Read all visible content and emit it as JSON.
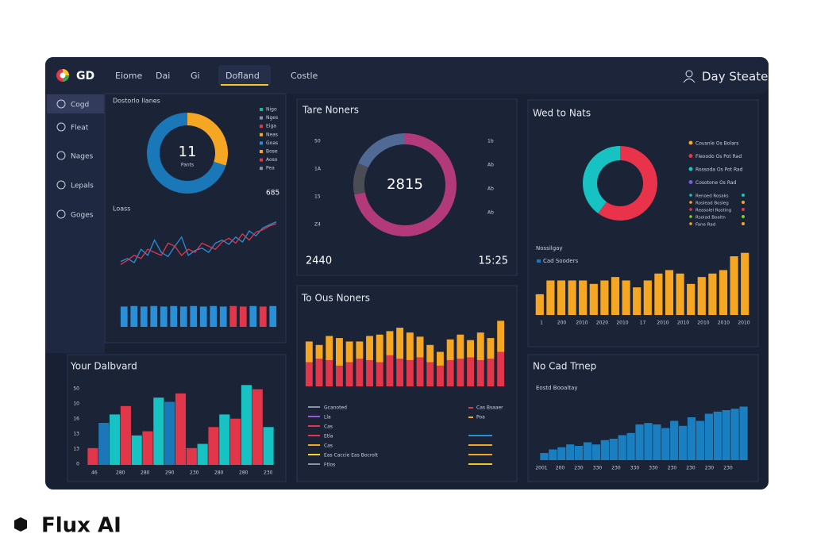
{
  "nav": {
    "logo": "GD",
    "tabs": [
      "Eiome",
      "Dai",
      "Gi",
      "Dofland",
      "Costle"
    ],
    "user": "Day Steate"
  },
  "sidebar": [
    "Cogd",
    "Fleat",
    "Nages",
    "Lepals",
    "Goges"
  ],
  "left": {
    "title": "Dostorlo Ilanes",
    "donut": {
      "center": "11",
      "label": "Pants",
      "values": [
        30,
        70
      ],
      "colors": [
        "#f5a623",
        "#1a78b8"
      ]
    },
    "legend": [
      "Nigo",
      "Nges",
      "Eiga",
      "Neas",
      "Goas",
      "Bose",
      "Aoso",
      "Pea"
    ],
    "legend_colors": [
      "#1ab7a0",
      "#8892a6",
      "#e2364a",
      "#f5a623",
      "#2a8fd6",
      "#f5a623",
      "#e2364a",
      "#8892a6"
    ],
    "total": "685",
    "line_title": "Loass",
    "line": {
      "ylim": [
        0,
        100
      ],
      "series": [
        {
          "color": "#2a8fd6",
          "values": [
            20,
            25,
            18,
            40,
            30,
            55,
            35,
            28,
            45,
            60,
            30,
            38,
            42,
            35,
            50,
            55,
            48,
            60,
            52,
            70,
            62,
            75,
            80,
            85
          ]
        },
        {
          "color": "#e2364a",
          "values": [
            15,
            22,
            30,
            25,
            40,
            35,
            30,
            50,
            45,
            30,
            40,
            35,
            50,
            45,
            40,
            52,
            58,
            50,
            65,
            55,
            68,
            72,
            78,
            82
          ]
        }
      ]
    },
    "bars": {
      "ylim": [
        0,
        100
      ],
      "values": [
        80,
        82,
        80,
        82,
        80,
        82,
        80,
        82,
        80,
        82,
        80,
        82,
        80,
        82,
        80,
        82
      ],
      "colors": [
        "#2a8fd6",
        "#2a8fd6",
        "#2a8fd6",
        "#2a8fd6",
        "#2a8fd6",
        "#2a8fd6",
        "#2a8fd6",
        "#2a8fd6",
        "#2a8fd6",
        "#2a8fd6",
        "#2a8fd6",
        "#e2364a",
        "#e2364a",
        "#2a8fd6",
        "#e2364a",
        "#2a8fd6"
      ]
    }
  },
  "center": {
    "title": "Tare Noners",
    "donut": {
      "center": "2815",
      "values": [
        72,
        10,
        18
      ],
      "colors": [
        "#b23a7a",
        "#4a4c56",
        "#4f6a94"
      ]
    },
    "axis_left": [
      "50",
      "1A",
      "15",
      "Z4"
    ],
    "axis_right": [
      "1b",
      "Ab",
      "Ab",
      "Ab"
    ],
    "foot_left": "2440",
    "foot_right": "15:25"
  },
  "right": {
    "title": "Wed to Nats",
    "donut": {
      "values": [
        60,
        40
      ],
      "colors": [
        "#e8334a",
        "#17c2c2"
      ]
    },
    "legend": [
      "Cousnle Os Bolars",
      "Fleoodo Os Pot Rad",
      "Rossoda Os Pot Rad",
      "Cosotone Os Rad"
    ],
    "legend_colors": [
      "#f5a623",
      "#e2364a",
      "#17c2c2",
      "#7b5cd6"
    ],
    "small_legend": [
      "Renoed Rosaks",
      "Roslead Bosleg",
      "Reasolel Rosting",
      "Rsolad Boaltn",
      "Fane Rad"
    ],
    "small_colors": [
      "#17c2c2",
      "#f5a623",
      "#e2364a",
      "#7ed321",
      "#f5a623"
    ],
    "bar_title": "Nossilgay",
    "bar_legend": "Cad Sooders",
    "bars": {
      "ylim": [
        0,
        100
      ],
      "color": "#f5a623",
      "values": [
        30,
        50,
        50,
        50,
        50,
        45,
        50,
        55,
        50,
        40,
        50,
        60,
        65,
        60,
        45,
        55,
        60,
        65,
        85,
        90
      ]
    },
    "xlabels": [
      "1",
      "200",
      "2010",
      "2020",
      "2010",
      "17",
      "2010",
      "2010",
      "2010",
      "2010",
      "2010"
    ]
  },
  "stack": {
    "title": "To Ous Noners",
    "ylim": [
      0,
      100
    ],
    "series": [
      {
        "color": "#e2364a",
        "values": [
          35,
          40,
          38,
          30,
          35,
          40,
          38,
          35,
          45,
          40,
          38,
          42,
          35,
          30,
          38,
          40,
          42,
          38,
          40,
          50
        ]
      },
      {
        "color": "#f5a623",
        "values": [
          30,
          20,
          35,
          40,
          30,
          25,
          35,
          40,
          35,
          45,
          40,
          30,
          25,
          20,
          30,
          35,
          25,
          40,
          30,
          45
        ]
      }
    ],
    "legend": [
      "Gcanoted",
      "Lla",
      "Cas",
      "Etla",
      "Cas",
      "Eas Caccie Eas Bocrolt",
      "Ftlos"
    ],
    "legend_colors": [
      "#8892a6",
      "#9b59d6",
      "#e2364a",
      "#e2364a",
      "#f5a623",
      "#f5d623",
      "#8892a6"
    ],
    "legend_right": [
      "Cas Bsaaer",
      "Poa"
    ]
  },
  "dash": {
    "title": "Your Dalbvard",
    "ylim": [
      0,
      100
    ],
    "values": [
      20,
      50,
      60,
      70,
      35,
      40,
      80,
      75,
      85,
      20,
      25,
      45,
      60,
      55,
      95,
      90,
      45
    ],
    "colors": [
      "#e2364a",
      "#1a78b8",
      "#17c2c2",
      "#e2364a",
      "#17c2c2",
      "#e2364a",
      "#17c2c2",
      "#1a78b8",
      "#e2364a",
      "#e2364a",
      "#17c2c2",
      "#e2364a",
      "#17c2c2",
      "#e2364a",
      "#17c2c2",
      "#e2364a",
      "#17c2c2"
    ],
    "ylabels": [
      "50",
      "10",
      "16",
      "13",
      "13",
      "0"
    ],
    "xlabels": [
      "46",
      "280",
      "280",
      "290",
      "230",
      "280",
      "280",
      "230"
    ]
  },
  "trend": {
    "title": "No Cad Trnep",
    "subtitle": "Eostd Booaltay",
    "ylim": [
      0,
      100
    ],
    "color": "#1a7fc1",
    "values": [
      10,
      15,
      18,
      22,
      20,
      25,
      22,
      28,
      30,
      35,
      38,
      50,
      52,
      50,
      45,
      55,
      48,
      60,
      55,
      65,
      68,
      70,
      72,
      75
    ],
    "xlabels": [
      "2001",
      "200",
      "230",
      "330",
      "230",
      "330",
      "330",
      "230",
      "230",
      "230",
      "230"
    ]
  },
  "watermark": "Flux AI"
}
